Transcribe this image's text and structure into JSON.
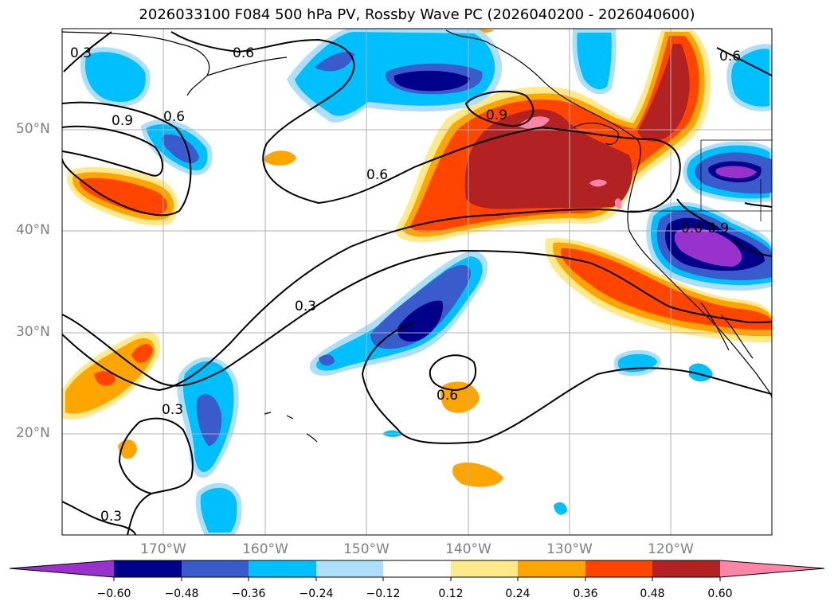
{
  "title": "2026033100 F084 500 hPa PV, Rossby Wave PC (2026040200 - 2026040600)",
  "map": {
    "lat_labels": [
      "50°N",
      "40°N",
      "30°N",
      "20°N"
    ],
    "lon_labels": [
      "170°W",
      "160°W",
      "150°W",
      "140°W",
      "130°W",
      "120°W"
    ],
    "contour_labels": [
      "0.3",
      "0.6",
      "0.9",
      "0.6",
      "0.6",
      "0.9",
      "0.6",
      "0.3",
      "0.3",
      "0.6",
      "0.3",
      "0.9",
      "0.6"
    ]
  },
  "colorbar": {
    "ticks": [
      "−0.60",
      "−0.48",
      "−0.36",
      "−0.24",
      "−0.12",
      "0.12",
      "0.24",
      "0.36",
      "0.48",
      "0.60"
    ],
    "colors": [
      "#9932CC",
      "#00008B",
      "#3A5BCB",
      "#00BFFF",
      "#ADDFFA",
      "#FFFFFF",
      "#FFE98A",
      "#FFA500",
      "#FF4500",
      "#B22222",
      "#FF85A8"
    ]
  }
}
